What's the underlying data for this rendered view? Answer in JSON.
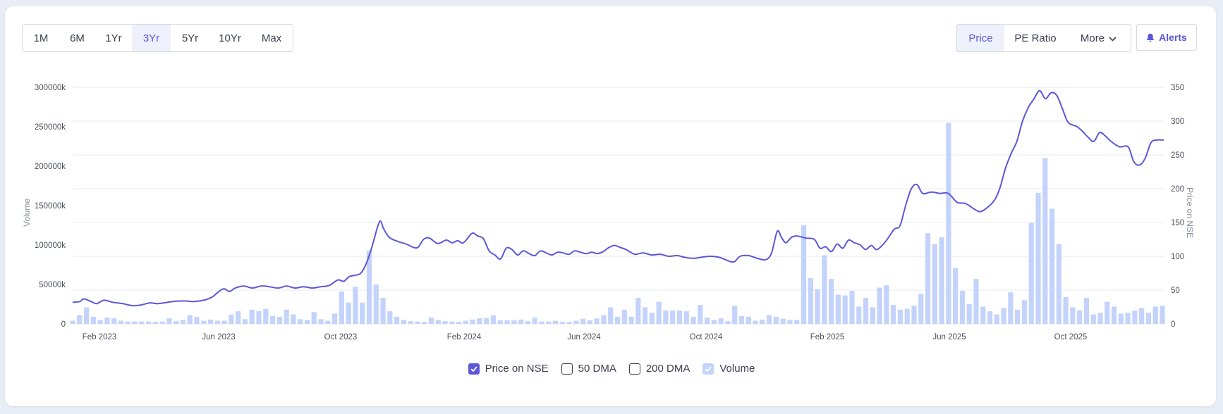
{
  "range_tabs": [
    {
      "label": "1M",
      "active": false
    },
    {
      "label": "6M",
      "active": false
    },
    {
      "label": "1Yr",
      "active": false
    },
    {
      "label": "3Yr",
      "active": true
    },
    {
      "label": "5Yr",
      "active": false
    },
    {
      "label": "10Yr",
      "active": false
    },
    {
      "label": "Max",
      "active": false
    }
  ],
  "view_tabs": {
    "price": "Price",
    "pe_ratio": "PE Ratio",
    "more": "More"
  },
  "alerts_label": "Alerts",
  "legend": {
    "price": "Price on NSE",
    "dma50": "50 DMA",
    "dma200": "200 DMA",
    "volume": "Volume"
  },
  "colors": {
    "price_line": "#5b57d8",
    "volume_bar": "#c3d3fb",
    "grid": "#e6e8ee",
    "active_tab_bg": "#eef0fb"
  },
  "chart_data": {
    "type": "line+bar",
    "xlabels": [
      "Feb 2023",
      "Jun 2023",
      "Oct 2023",
      "Feb 2024",
      "Jun 2024",
      "Oct 2024",
      "Feb 2025",
      "Jun 2025",
      "Oct 2025"
    ],
    "y_left": {
      "label": "Volume",
      "ticks": [
        "0",
        "50000k",
        "100000k",
        "150000k",
        "200000k",
        "250000k",
        "300000k"
      ],
      "range": [
        0,
        300000
      ]
    },
    "y_right": {
      "label": "Price on NSE",
      "ticks": [
        "0",
        "50",
        "100",
        "150",
        "200",
        "250",
        "300",
        "350"
      ],
      "range": [
        0,
        350
      ]
    },
    "price": [
      [
        0,
        32
      ],
      [
        5,
        33
      ],
      [
        8,
        37
      ],
      [
        14,
        32
      ],
      [
        17,
        30
      ],
      [
        22,
        35
      ],
      [
        28,
        32
      ],
      [
        35,
        30
      ],
      [
        42,
        27
      ],
      [
        48,
        28
      ],
      [
        54,
        31
      ],
      [
        60,
        30
      ],
      [
        70,
        33
      ],
      [
        78,
        34
      ],
      [
        85,
        33
      ],
      [
        92,
        35
      ],
      [
        98,
        40
      ],
      [
        102,
        47
      ],
      [
        106,
        52
      ],
      [
        110,
        48
      ],
      [
        114,
        53
      ],
      [
        120,
        56
      ],
      [
        126,
        53
      ],
      [
        132,
        56
      ],
      [
        138,
        55
      ],
      [
        144,
        53
      ],
      [
        150,
        56
      ],
      [
        156,
        53
      ],
      [
        162,
        55
      ],
      [
        168,
        53
      ],
      [
        174,
        55
      ],
      [
        180,
        57
      ],
      [
        186,
        65
      ],
      [
        190,
        63
      ],
      [
        194,
        70
      ],
      [
        198,
        72
      ],
      [
        202,
        75
      ],
      [
        206,
        90
      ],
      [
        210,
        115
      ],
      [
        214,
        145
      ],
      [
        216,
        152
      ],
      [
        218,
        141
      ],
      [
        222,
        128
      ],
      [
        228,
        122
      ],
      [
        234,
        118
      ],
      [
        238,
        114
      ],
      [
        242,
        113
      ],
      [
        246,
        125
      ],
      [
        250,
        127
      ],
      [
        256,
        119
      ],
      [
        262,
        124
      ],
      [
        266,
        120
      ],
      [
        270,
        123
      ],
      [
        274,
        120
      ],
      [
        280,
        134
      ],
      [
        284,
        130
      ],
      [
        288,
        126
      ],
      [
        292,
        108
      ],
      [
        296,
        102
      ],
      [
        300,
        96
      ],
      [
        304,
        112
      ],
      [
        308,
        110
      ],
      [
        312,
        102
      ],
      [
        316,
        108
      ],
      [
        320,
        104
      ],
      [
        324,
        101
      ],
      [
        328,
        108
      ],
      [
        332,
        105
      ],
      [
        336,
        102
      ],
      [
        340,
        106
      ],
      [
        344,
        105
      ],
      [
        348,
        103
      ],
      [
        352,
        108
      ],
      [
        356,
        106
      ],
      [
        360,
        104
      ],
      [
        364,
        106
      ],
      [
        368,
        104
      ],
      [
        372,
        107
      ],
      [
        376,
        113
      ],
      [
        380,
        116
      ],
      [
        384,
        113
      ],
      [
        388,
        110
      ],
      [
        394,
        103
      ],
      [
        400,
        105
      ],
      [
        406,
        102
      ],
      [
        412,
        103
      ],
      [
        418,
        100
      ],
      [
        424,
        101
      ],
      [
        430,
        98
      ],
      [
        436,
        97
      ],
      [
        442,
        99
      ],
      [
        448,
        100
      ],
      [
        454,
        98
      ],
      [
        460,
        93
      ],
      [
        464,
        92
      ],
      [
        468,
        100
      ],
      [
        474,
        101
      ],
      [
        480,
        97
      ],
      [
        486,
        95
      ],
      [
        490,
        105
      ],
      [
        494,
        137
      ],
      [
        497,
        128
      ],
      [
        500,
        120
      ],
      [
        504,
        128
      ],
      [
        508,
        130
      ],
      [
        514,
        127
      ],
      [
        520,
        125
      ],
      [
        524,
        112
      ],
      [
        528,
        114
      ],
      [
        532,
        107
      ],
      [
        536,
        118
      ],
      [
        540,
        112
      ],
      [
        544,
        124
      ],
      [
        548,
        120
      ],
      [
        552,
        117
      ],
      [
        556,
        110
      ],
      [
        560,
        116
      ],
      [
        564,
        110
      ],
      [
        570,
        122
      ],
      [
        576,
        140
      ],
      [
        580,
        145
      ],
      [
        584,
        175
      ],
      [
        588,
        200
      ],
      [
        592,
        206
      ],
      [
        596,
        193
      ],
      [
        602,
        195
      ],
      [
        608,
        193
      ],
      [
        614,
        193
      ],
      [
        620,
        180
      ],
      [
        626,
        178
      ],
      [
        632,
        170
      ],
      [
        636,
        166
      ],
      [
        640,
        170
      ],
      [
        646,
        182
      ],
      [
        650,
        200
      ],
      [
        654,
        230
      ],
      [
        658,
        252
      ],
      [
        662,
        270
      ],
      [
        666,
        300
      ],
      [
        670,
        320
      ],
      [
        674,
        333
      ],
      [
        678,
        345
      ],
      [
        682,
        333
      ],
      [
        686,
        342
      ],
      [
        690,
        338
      ],
      [
        694,
        318
      ],
      [
        698,
        298
      ],
      [
        704,
        292
      ],
      [
        708,
        285
      ],
      [
        712,
        276
      ],
      [
        716,
        270
      ],
      [
        720,
        283
      ],
      [
        724,
        278
      ],
      [
        728,
        270
      ],
      [
        734,
        262
      ],
      [
        740,
        262
      ],
      [
        744,
        240
      ],
      [
        748,
        235
      ],
      [
        752,
        245
      ],
      [
        756,
        268
      ],
      [
        760,
        272
      ],
      [
        765,
        272
      ]
    ],
    "volume": [
      4000,
      11000,
      21000,
      9000,
      5000,
      8000,
      7000,
      4000,
      3000,
      3000,
      3000,
      3000,
      2500,
      3000,
      7000,
      3500,
      5000,
      11000,
      9000,
      4000,
      5500,
      4000,
      4000,
      12000,
      16000,
      6000,
      18000,
      16000,
      19000,
      10000,
      9000,
      18000,
      12000,
      6000,
      5000,
      15000,
      6000,
      4000,
      13000,
      41000,
      27000,
      47000,
      27000,
      93000,
      50000,
      33000,
      16000,
      9000,
      5000,
      3500,
      3000,
      2500,
      8000,
      5000,
      3500,
      3000,
      2500,
      4000,
      5500,
      7000,
      7500,
      11000,
      4500,
      4500,
      4500,
      5500,
      3500,
      8000,
      3000,
      3000,
      4000,
      2500,
      2500,
      4000,
      6500,
      4500,
      7000,
      11000,
      21000,
      9000,
      18000,
      9000,
      33000,
      21000,
      14000,
      28000,
      17000,
      17000,
      17000,
      16000,
      9000,
      24000,
      8000,
      5000,
      7000,
      3500,
      23000,
      10000,
      9000,
      4000,
      5500,
      11000,
      9000,
      6500,
      5000,
      5000,
      125000,
      58000,
      44000,
      87000,
      57000,
      37000,
      36000,
      42000,
      22000,
      33000,
      21000,
      46000,
      49000,
      24000,
      18000,
      19000,
      23000,
      38000,
      115000,
      101000,
      110000,
      255000,
      71000,
      42000,
      25000,
      57000,
      22000,
      16000,
      12000,
      20000,
      40000,
      18000,
      30000,
      128000,
      166000,
      210000,
      146000,
      101000,
      34000,
      21000,
      17000,
      33000,
      12000,
      14000,
      28000,
      22000,
      13000,
      14000,
      17000,
      20000,
      14000,
      22000,
      23000
    ],
    "x_max": 765
  }
}
